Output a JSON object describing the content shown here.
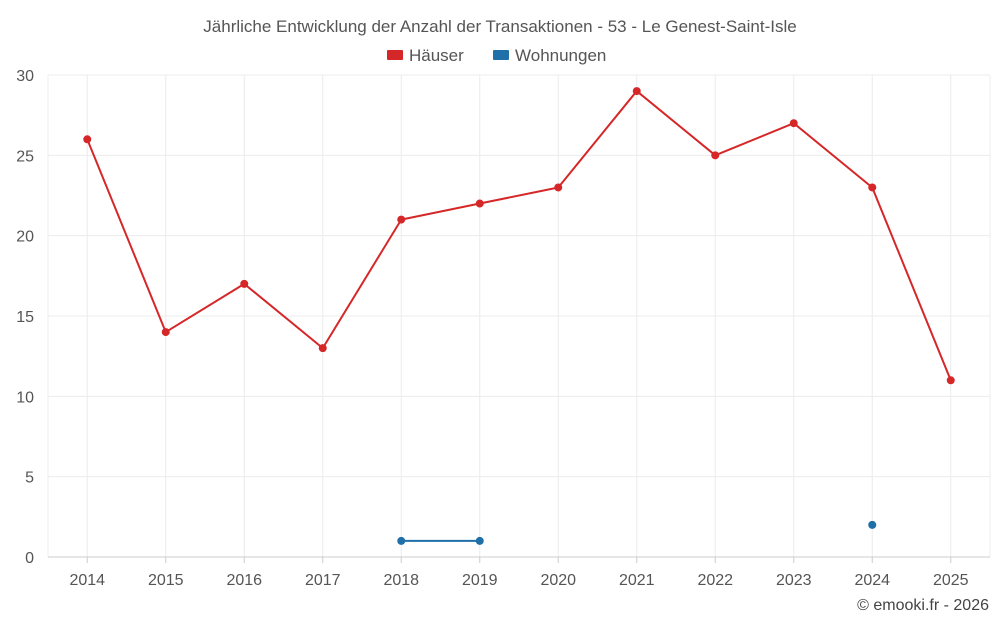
{
  "chart_data": {
    "type": "line",
    "title": "Jährliche Entwicklung der Anzahl der Transaktionen - 53 - Le Genest-Saint-Isle",
    "categories": [
      "2014",
      "2015",
      "2016",
      "2017",
      "2018",
      "2019",
      "2020",
      "2021",
      "2022",
      "2023",
      "2024",
      "2025"
    ],
    "ylim": [
      0,
      30
    ],
    "yticks": [
      0,
      5,
      10,
      15,
      20,
      25,
      30
    ],
    "xlabel": "",
    "ylabel": "",
    "grid": true,
    "legend_position": "top-center",
    "series": [
      {
        "name": "Häuser",
        "color": "#d62728",
        "values": [
          26,
          14,
          17,
          13,
          21,
          22,
          23,
          29,
          25,
          27,
          23,
          11
        ]
      },
      {
        "name": "Wohnungen",
        "color": "#1f6fa8",
        "values": [
          null,
          null,
          null,
          null,
          1,
          1,
          null,
          null,
          null,
          null,
          2,
          null
        ]
      }
    ]
  },
  "credit": "© emooki.fr - 2026"
}
